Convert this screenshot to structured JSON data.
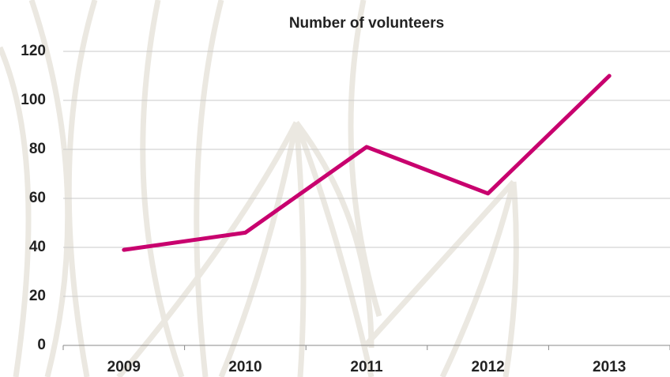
{
  "chart_data": {
    "type": "line",
    "title": "Number of volunteers",
    "categories": [
      "2009",
      "2010",
      "2011",
      "2012",
      "2013"
    ],
    "series": [
      {
        "name": "Volunteers",
        "color": "#c8006e",
        "values": [
          39,
          46,
          81,
          62,
          110
        ]
      }
    ],
    "ylim": [
      0,
      120
    ],
    "yticks": [
      0,
      20,
      40,
      60,
      80,
      100,
      120
    ],
    "grid": true
  }
}
